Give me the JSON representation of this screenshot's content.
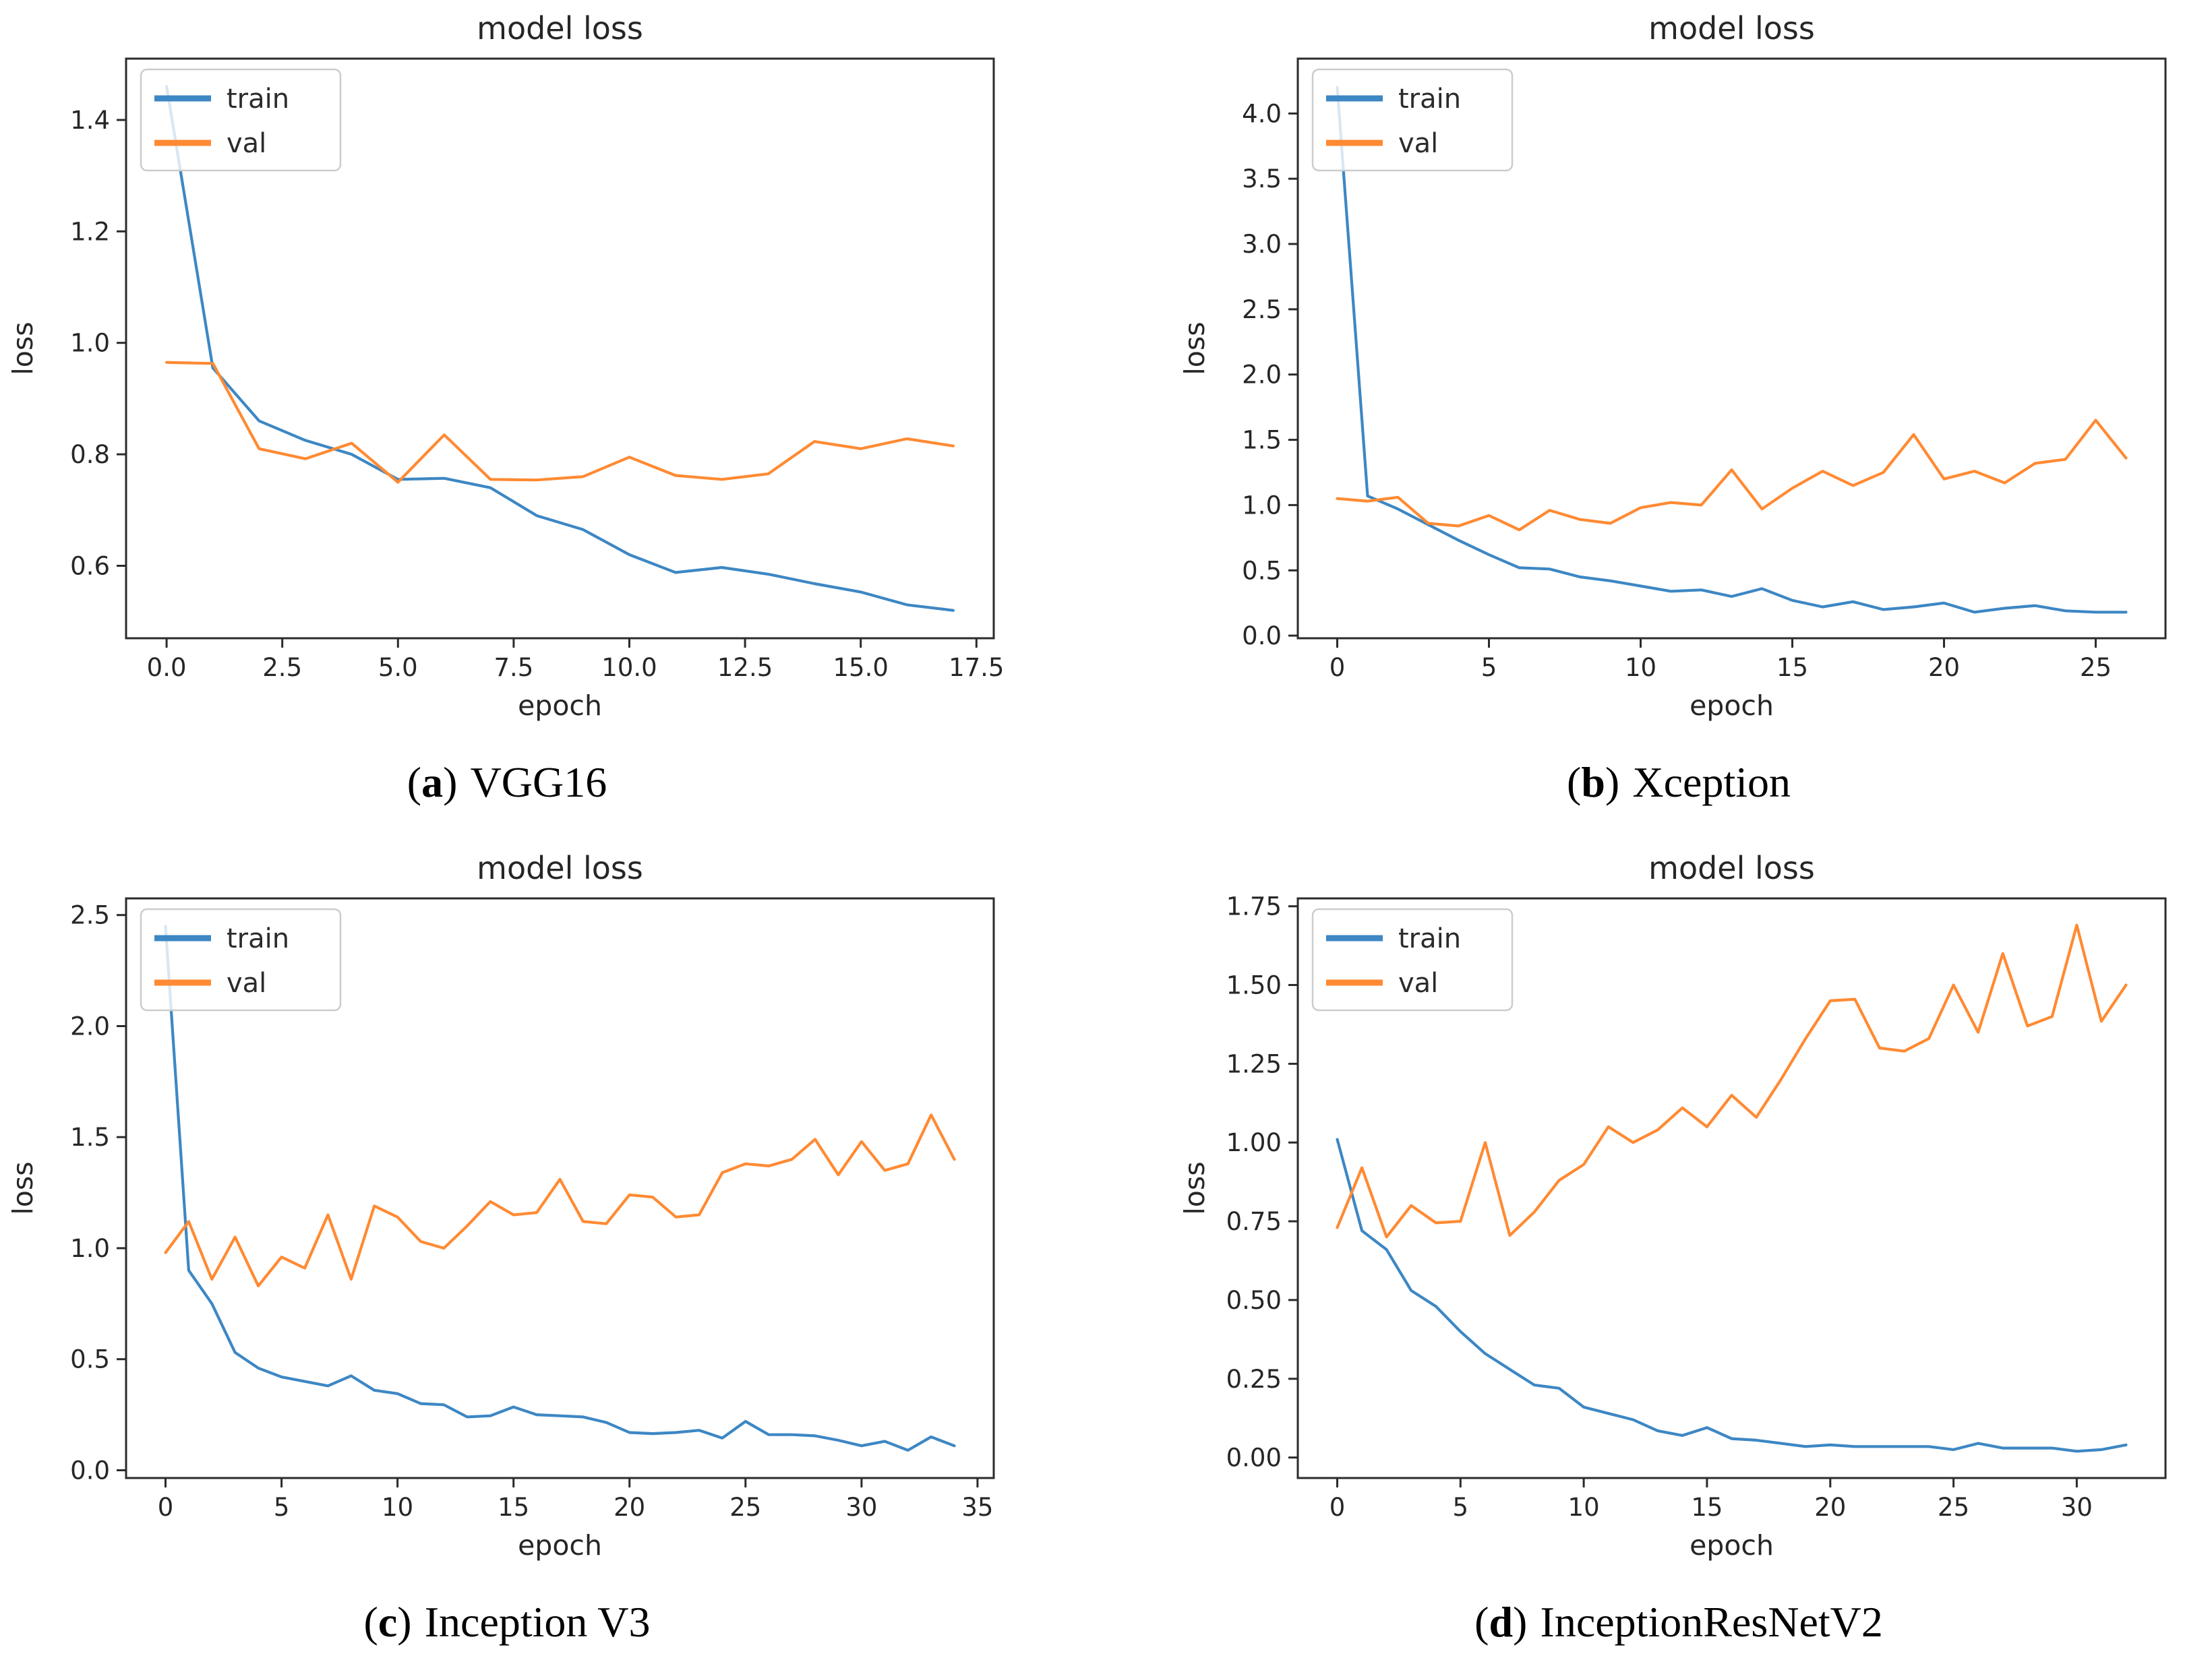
{
  "page": {
    "background": "#ffffff"
  },
  "colors": {
    "train_line": "#3d87c4",
    "val_line": "#ff8a33",
    "axis_text": "#262626",
    "spine": "#2b2b2b",
    "legend_border": "#cccccc"
  },
  "chart_data": [
    {
      "type": "line",
      "panel": "a",
      "title": "model loss",
      "xlabel": "epoch",
      "ylabel": "loss",
      "xlim": [
        -0.875,
        17.875
      ],
      "ylim": [
        0.47,
        1.51
      ],
      "grid": false,
      "xticks": {
        "values": [
          0,
          2.5,
          5,
          7.5,
          10,
          12.5,
          15,
          17.5
        ],
        "labels": [
          "0.0",
          "2.5",
          "5.0",
          "7.5",
          "10.0",
          "12.5",
          "15.0",
          "17.5"
        ]
      },
      "yticks": {
        "values": [
          0.6,
          0.8,
          1.0,
          1.2,
          1.4
        ],
        "labels": [
          "0.6",
          "0.8",
          "1.0",
          "1.2",
          "1.4"
        ]
      },
      "legend": {
        "position": "upper left",
        "entries": [
          "train",
          "val"
        ]
      },
      "series": [
        {
          "name": "train",
          "color": "#3d87c4",
          "x": [
            0,
            1,
            2,
            3,
            4,
            5,
            6,
            7,
            8,
            9,
            10,
            11,
            12,
            13,
            14,
            15,
            16,
            17
          ],
          "y": [
            1.46,
            0.955,
            0.86,
            0.825,
            0.8,
            0.755,
            0.757,
            0.74,
            0.69,
            0.665,
            0.62,
            0.588,
            0.597,
            0.585,
            0.568,
            0.553,
            0.53,
            0.52
          ]
        },
        {
          "name": "val",
          "color": "#ff8a33",
          "x": [
            0,
            1,
            2,
            3,
            4,
            5,
            6,
            7,
            8,
            9,
            10,
            11,
            12,
            13,
            14,
            15,
            16,
            17
          ],
          "y": [
            0.965,
            0.963,
            0.81,
            0.792,
            0.82,
            0.75,
            0.835,
            0.755,
            0.754,
            0.76,
            0.795,
            0.762,
            0.755,
            0.765,
            0.823,
            0.81,
            0.828,
            0.815
          ]
        }
      ],
      "caption": {
        "open": "(",
        "letter": "a",
        "close": ")",
        "text": "VGG16"
      }
    },
    {
      "type": "line",
      "panel": "b",
      "title": "model loss",
      "xlabel": "epoch",
      "ylabel": "loss",
      "xlim": [
        -1.3,
        27.3
      ],
      "ylim": [
        -0.02,
        4.42
      ],
      "grid": false,
      "xticks": {
        "values": [
          0,
          5,
          10,
          15,
          20,
          25
        ],
        "labels": [
          "0",
          "5",
          "10",
          "15",
          "20",
          "25"
        ]
      },
      "yticks": {
        "values": [
          0.0,
          0.5,
          1.0,
          1.5,
          2.0,
          2.5,
          3.0,
          3.5,
          4.0
        ],
        "labels": [
          "0.0",
          "0.5",
          "1.0",
          "1.5",
          "2.0",
          "2.5",
          "3.0",
          "3.5",
          "4.0"
        ]
      },
      "legend": {
        "position": "upper left",
        "entries": [
          "train",
          "val"
        ]
      },
      "series": [
        {
          "name": "train",
          "color": "#3d87c4",
          "x": [
            0,
            1,
            2,
            3,
            4,
            5,
            6,
            7,
            8,
            9,
            10,
            11,
            12,
            13,
            14,
            15,
            16,
            17,
            18,
            19,
            20,
            21,
            22,
            23,
            24,
            25,
            26
          ],
          "y": [
            4.2,
            1.07,
            0.97,
            0.85,
            0.73,
            0.62,
            0.52,
            0.51,
            0.45,
            0.42,
            0.38,
            0.34,
            0.35,
            0.3,
            0.36,
            0.27,
            0.22,
            0.26,
            0.2,
            0.22,
            0.25,
            0.18,
            0.21,
            0.23,
            0.19,
            0.18,
            0.18
          ]
        },
        {
          "name": "val",
          "color": "#ff8a33",
          "x": [
            0,
            1,
            2,
            3,
            4,
            5,
            6,
            7,
            8,
            9,
            10,
            11,
            12,
            13,
            14,
            15,
            16,
            17,
            18,
            19,
            20,
            21,
            22,
            23,
            24,
            25,
            26
          ],
          "y": [
            1.05,
            1.03,
            1.06,
            0.86,
            0.84,
            0.92,
            0.81,
            0.96,
            0.89,
            0.86,
            0.98,
            1.02,
            1.0,
            1.27,
            0.97,
            1.13,
            1.26,
            1.15,
            1.25,
            1.54,
            1.2,
            1.26,
            1.17,
            1.32,
            1.35,
            1.65,
            1.36
          ]
        }
      ],
      "caption": {
        "open": "(",
        "letter": "b",
        "close": ")",
        "text": "Xception"
      }
    },
    {
      "type": "line",
      "panel": "c",
      "title": "model loss",
      "xlabel": "epoch",
      "ylabel": "loss",
      "xlim": [
        -1.7,
        35.7
      ],
      "ylim": [
        -0.035,
        2.575
      ],
      "grid": false,
      "xticks": {
        "values": [
          0,
          5,
          10,
          15,
          20,
          25,
          30,
          35
        ],
        "labels": [
          "0",
          "5",
          "10",
          "15",
          "20",
          "25",
          "30",
          "35"
        ]
      },
      "yticks": {
        "values": [
          0.0,
          0.5,
          1.0,
          1.5,
          2.0,
          2.5
        ],
        "labels": [
          "0.0",
          "0.5",
          "1.0",
          "1.5",
          "2.0",
          "2.5"
        ]
      },
      "legend": {
        "position": "upper left",
        "entries": [
          "train",
          "val"
        ]
      },
      "series": [
        {
          "name": "train",
          "color": "#3d87c4",
          "x": [
            0,
            1,
            2,
            3,
            4,
            5,
            6,
            7,
            8,
            9,
            10,
            11,
            12,
            13,
            14,
            15,
            16,
            17,
            18,
            19,
            20,
            21,
            22,
            23,
            24,
            25,
            26,
            27,
            28,
            29,
            30,
            31,
            32,
            33,
            34
          ],
          "y": [
            2.45,
            0.9,
            0.75,
            0.53,
            0.46,
            0.42,
            0.4,
            0.38,
            0.425,
            0.36,
            0.345,
            0.3,
            0.295,
            0.24,
            0.245,
            0.285,
            0.25,
            0.245,
            0.24,
            0.215,
            0.17,
            0.165,
            0.17,
            0.18,
            0.145,
            0.22,
            0.16,
            0.16,
            0.155,
            0.135,
            0.11,
            0.13,
            0.09,
            0.15,
            0.11
          ]
        },
        {
          "name": "val",
          "color": "#ff8a33",
          "x": [
            0,
            1,
            2,
            3,
            4,
            5,
            6,
            7,
            8,
            9,
            10,
            11,
            12,
            13,
            14,
            15,
            16,
            17,
            18,
            19,
            20,
            21,
            22,
            23,
            24,
            25,
            26,
            27,
            28,
            29,
            30,
            31,
            32,
            33,
            34
          ],
          "y": [
            0.98,
            1.12,
            0.86,
            1.05,
            0.83,
            0.96,
            0.91,
            1.15,
            0.86,
            1.19,
            1.14,
            1.03,
            1.0,
            1.1,
            1.21,
            1.15,
            1.16,
            1.31,
            1.12,
            1.11,
            1.24,
            1.23,
            1.14,
            1.15,
            1.34,
            1.38,
            1.37,
            1.4,
            1.49,
            1.33,
            1.48,
            1.35,
            1.38,
            1.6,
            1.4
          ]
        }
      ],
      "caption": {
        "open": "(",
        "letter": "c",
        "close": ")",
        "text": "Inception V3"
      }
    },
    {
      "type": "line",
      "panel": "d",
      "title": "model loss",
      "xlabel": "epoch",
      "ylabel": "loss",
      "xlim": [
        -1.6,
        33.6
      ],
      "ylim": [
        -0.065,
        1.775
      ],
      "grid": false,
      "xticks": {
        "values": [
          0,
          5,
          10,
          15,
          20,
          25,
          30
        ],
        "labels": [
          "0",
          "5",
          "10",
          "15",
          "20",
          "25",
          "30"
        ]
      },
      "yticks": {
        "values": [
          0.0,
          0.25,
          0.5,
          0.75,
          1.0,
          1.25,
          1.5,
          1.75
        ],
        "labels": [
          "0.00",
          "0.25",
          "0.50",
          "0.75",
          "1.00",
          "1.25",
          "1.50",
          "1.75"
        ]
      },
      "legend": {
        "position": "upper left",
        "entries": [
          "train",
          "val"
        ]
      },
      "series": [
        {
          "name": "train",
          "color": "#3d87c4",
          "x": [
            0,
            1,
            2,
            3,
            4,
            5,
            6,
            7,
            8,
            9,
            10,
            11,
            12,
            13,
            14,
            15,
            16,
            17,
            18,
            19,
            20,
            21,
            22,
            23,
            24,
            25,
            26,
            27,
            28,
            29,
            30,
            31,
            32
          ],
          "y": [
            1.01,
            0.72,
            0.66,
            0.53,
            0.48,
            0.4,
            0.33,
            0.28,
            0.23,
            0.22,
            0.16,
            0.14,
            0.12,
            0.085,
            0.07,
            0.095,
            0.06,
            0.055,
            0.045,
            0.035,
            0.04,
            0.035,
            0.035,
            0.035,
            0.035,
            0.025,
            0.045,
            0.03,
            0.03,
            0.03,
            0.02,
            0.025,
            0.04
          ]
        },
        {
          "name": "val",
          "color": "#ff8a33",
          "x": [
            0,
            1,
            2,
            3,
            4,
            5,
            6,
            7,
            8,
            9,
            10,
            11,
            12,
            13,
            14,
            15,
            16,
            17,
            18,
            19,
            20,
            21,
            22,
            23,
            24,
            25,
            26,
            27,
            28,
            29,
            30,
            31,
            32
          ],
          "y": [
            0.73,
            0.92,
            0.7,
            0.8,
            0.745,
            0.75,
            1.0,
            0.705,
            0.78,
            0.88,
            0.93,
            1.05,
            1.0,
            1.04,
            1.11,
            1.05,
            1.15,
            1.08,
            1.2,
            1.33,
            1.45,
            1.455,
            1.3,
            1.29,
            1.33,
            1.5,
            1.35,
            1.6,
            1.37,
            1.4,
            1.69,
            1.385,
            1.5
          ]
        }
      ],
      "caption": {
        "open": "(",
        "letter": "d",
        "close": ")",
        "text": "InceptionResNetV2"
      }
    }
  ]
}
